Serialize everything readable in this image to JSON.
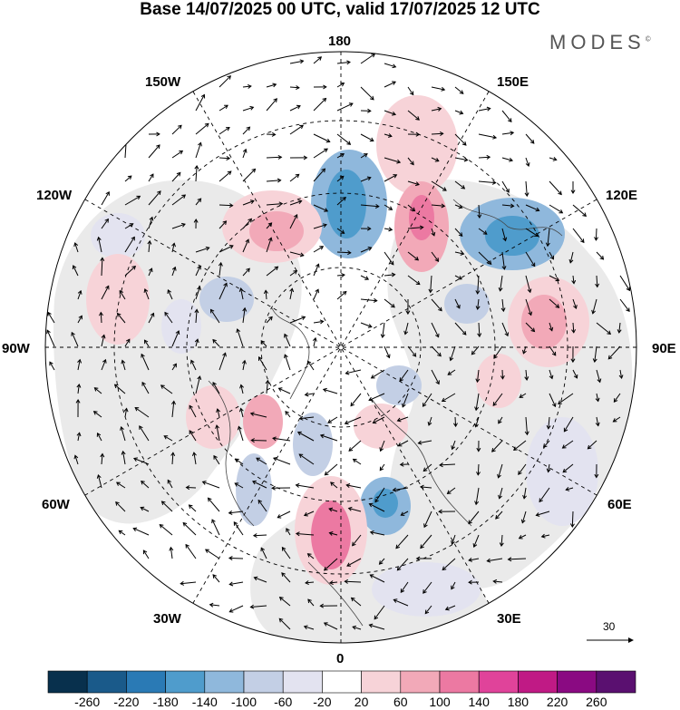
{
  "title": "Base 14/07/2025 00 UTC, valid 17/07/2025 12 UTC",
  "brand": {
    "text": "MODES",
    "mark": "©"
  },
  "lon_labels": {
    "l180": "180",
    "l150E": "150E",
    "l120E": "120E",
    "l90E": "90E",
    "l60E": "60E",
    "l30E": "30E",
    "l0": "0",
    "l30W": "30W",
    "l60W": "60W",
    "l90W": "90W",
    "l120W": "120W",
    "l150W": "150W"
  },
  "reference_vector": {
    "value": "30"
  },
  "colorbar": {
    "ticks": [
      "-260",
      "-220",
      "-180",
      "-140",
      "-100",
      "-60",
      "-20",
      "20",
      "60",
      "100",
      "140",
      "180",
      "220",
      "260"
    ],
    "colors": [
      "#08304d",
      "#1a5a8a",
      "#2a7ab5",
      "#4f9ccc",
      "#8fb8dc",
      "#c3cfe5",
      "#e3e3f0",
      "#ffffff",
      "#f7d3d8",
      "#f2a9b8",
      "#ec79a2",
      "#e0439a",
      "#c01a85",
      "#8a0a82",
      "#5a1070"
    ]
  },
  "field_colors": {
    "land_gray": "#eaeaea",
    "ocean_white": "#ffffff"
  }
}
